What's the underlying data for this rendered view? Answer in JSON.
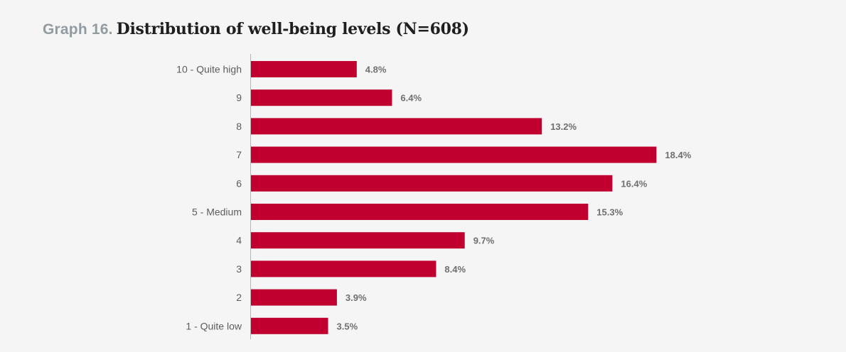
{
  "title": {
    "prefix": "Graph 16.",
    "text": "Distribution of well-being levels (N=608)"
  },
  "chart_data": {
    "type": "bar",
    "orientation": "horizontal",
    "title": "Distribution of well-being levels (N=608)",
    "categories": [
      "10 - Quite high",
      "9",
      "8",
      "7",
      "6",
      "5 - Medium",
      "4",
      "3",
      "2",
      "1 - Quite low"
    ],
    "values": [
      4.8,
      6.4,
      13.2,
      18.4,
      16.4,
      15.3,
      9.7,
      8.4,
      3.9,
      3.5
    ],
    "value_labels": [
      "4.8%",
      "6.4%",
      "13.2%",
      "18.4%",
      "16.4%",
      "15.3%",
      "9.7%",
      "8.4%",
      "3.9%",
      "3.5%"
    ],
    "xlabel": "",
    "ylabel": "",
    "grid": false,
    "bar_color": "#c0002f"
  }
}
